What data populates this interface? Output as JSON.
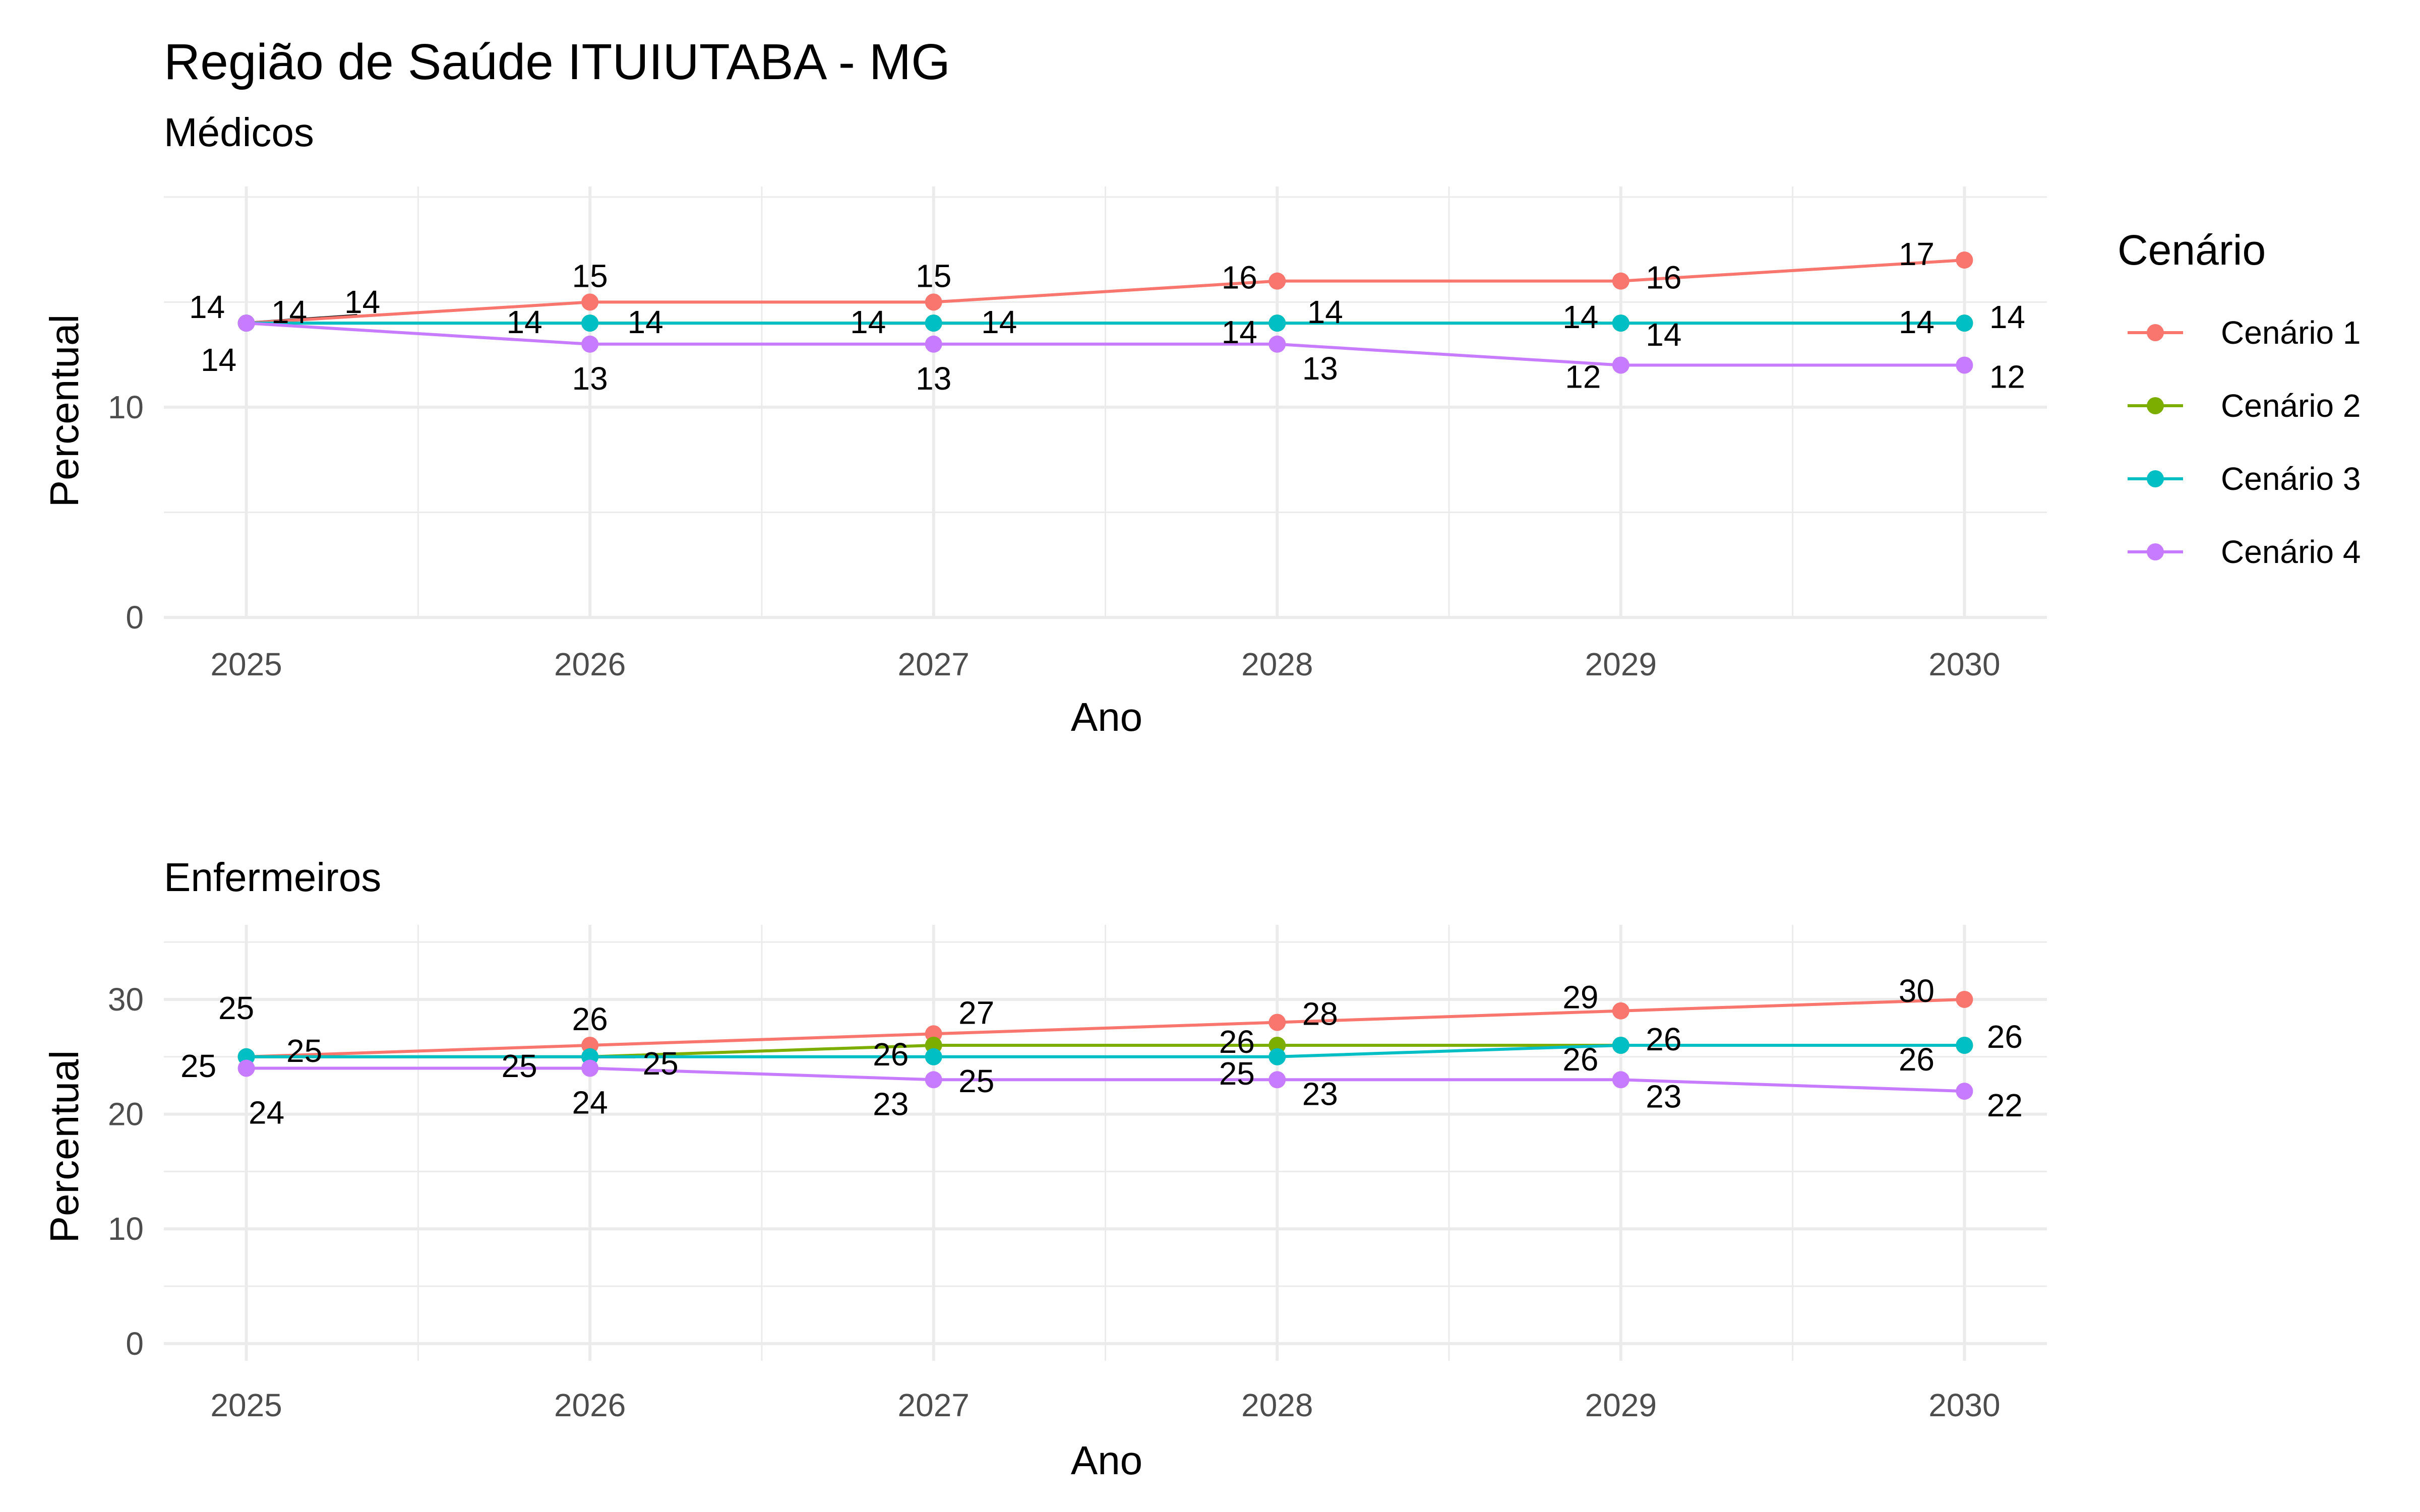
{
  "title": "Região de Saúde ITUIUTABA - MG",
  "legend": {
    "title": "Cenário",
    "entries": [
      "Cenário 1",
      "Cenário 2",
      "Cenário 3",
      "Cenário 4"
    ]
  },
  "colors": {
    "Cenário 1": "#F8766D",
    "Cenário 2": "#7CAE00",
    "Cenário 3": "#00BFC4",
    "Cenário 4": "#C77CFF",
    "label_line": "#000000",
    "grid": "#ebebeb"
  },
  "chart_data": [
    {
      "type": "line",
      "subtitle": "Médicos",
      "xlabel": "Ano",
      "ylabel": "Percentual",
      "x": [
        2025,
        2026,
        2027,
        2028,
        2029,
        2030
      ],
      "x_ticks": [
        "2025",
        "2026",
        "2027",
        "2028",
        "2029",
        "2030"
      ],
      "y_ticks": [
        "0",
        "10"
      ],
      "ylim": [
        0,
        20.5
      ],
      "grid": true,
      "legend_position": "right",
      "series": [
        {
          "name": "Cenário 1",
          "values": [
            14,
            15,
            15,
            16,
            16,
            17
          ]
        },
        {
          "name": "Cenário 2",
          "values": [
            14,
            14,
            14,
            14,
            14,
            14
          ]
        },
        {
          "name": "Cenário 3",
          "values": [
            14,
            14,
            14,
            14,
            14,
            14
          ]
        },
        {
          "name": "Cenário 4",
          "values": [
            14,
            13,
            13,
            13,
            12,
            12
          ]
        }
      ]
    },
    {
      "type": "line",
      "subtitle": "Enfermeiros",
      "xlabel": "Ano",
      "ylabel": "Percentual",
      "x": [
        2025,
        2026,
        2027,
        2028,
        2029,
        2030
      ],
      "x_ticks": [
        "2025",
        "2026",
        "2027",
        "2028",
        "2029",
        "2030"
      ],
      "y_ticks": [
        "0",
        "10",
        "20",
        "30"
      ],
      "ylim": [
        -1.5,
        36.5
      ],
      "grid": true,
      "legend_position": "right",
      "series": [
        {
          "name": "Cenário 1",
          "values": [
            25,
            26,
            27,
            28,
            29,
            30
          ]
        },
        {
          "name": "Cenário 2",
          "values": [
            25,
            25,
            26,
            26,
            26,
            26
          ]
        },
        {
          "name": "Cenário 3",
          "values": [
            25,
            25,
            25,
            25,
            26,
            26
          ]
        },
        {
          "name": "Cenário 4",
          "values": [
            24,
            24,
            23,
            23,
            23,
            22
          ]
        }
      ]
    }
  ]
}
